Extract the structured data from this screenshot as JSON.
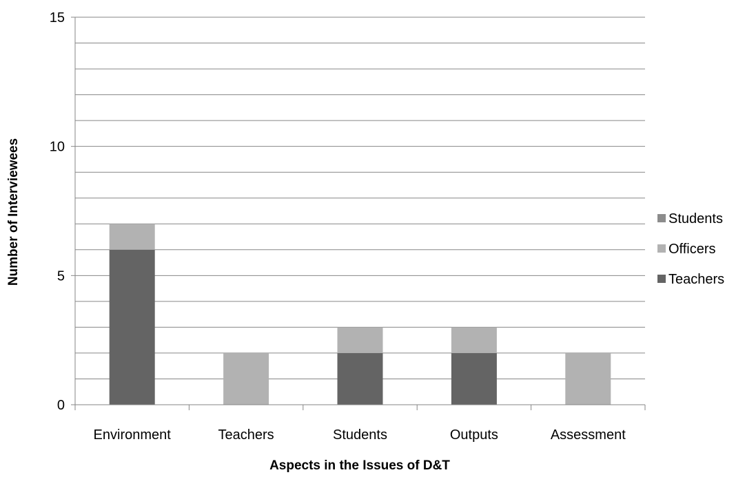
{
  "chart_data": {
    "type": "bar",
    "stacked": true,
    "categories": [
      "Environment",
      "Teachers",
      "Students",
      "Outputs",
      "Assessment"
    ],
    "series": [
      {
        "name": "Teachers",
        "values": [
          6,
          0,
          2,
          2,
          0
        ],
        "color": "#646464"
      },
      {
        "name": "Officers",
        "values": [
          1,
          2,
          1,
          1,
          2
        ],
        "color": "#b2b2b2"
      },
      {
        "name": "Students",
        "values": [
          0,
          0,
          0,
          0,
          0
        ],
        "color": "#8c8c8c"
      }
    ],
    "title": "",
    "xlabel": "Aspects in the Issues of D&T",
    "ylabel": "Number of Interviewees",
    "ylim": [
      0,
      15
    ],
    "yticks": [
      0,
      5,
      10,
      15
    ],
    "minor_gridlines_step": 1,
    "grid": true,
    "legend_position": "right",
    "legend_order": [
      "Students",
      "Officers",
      "Teachers"
    ]
  }
}
